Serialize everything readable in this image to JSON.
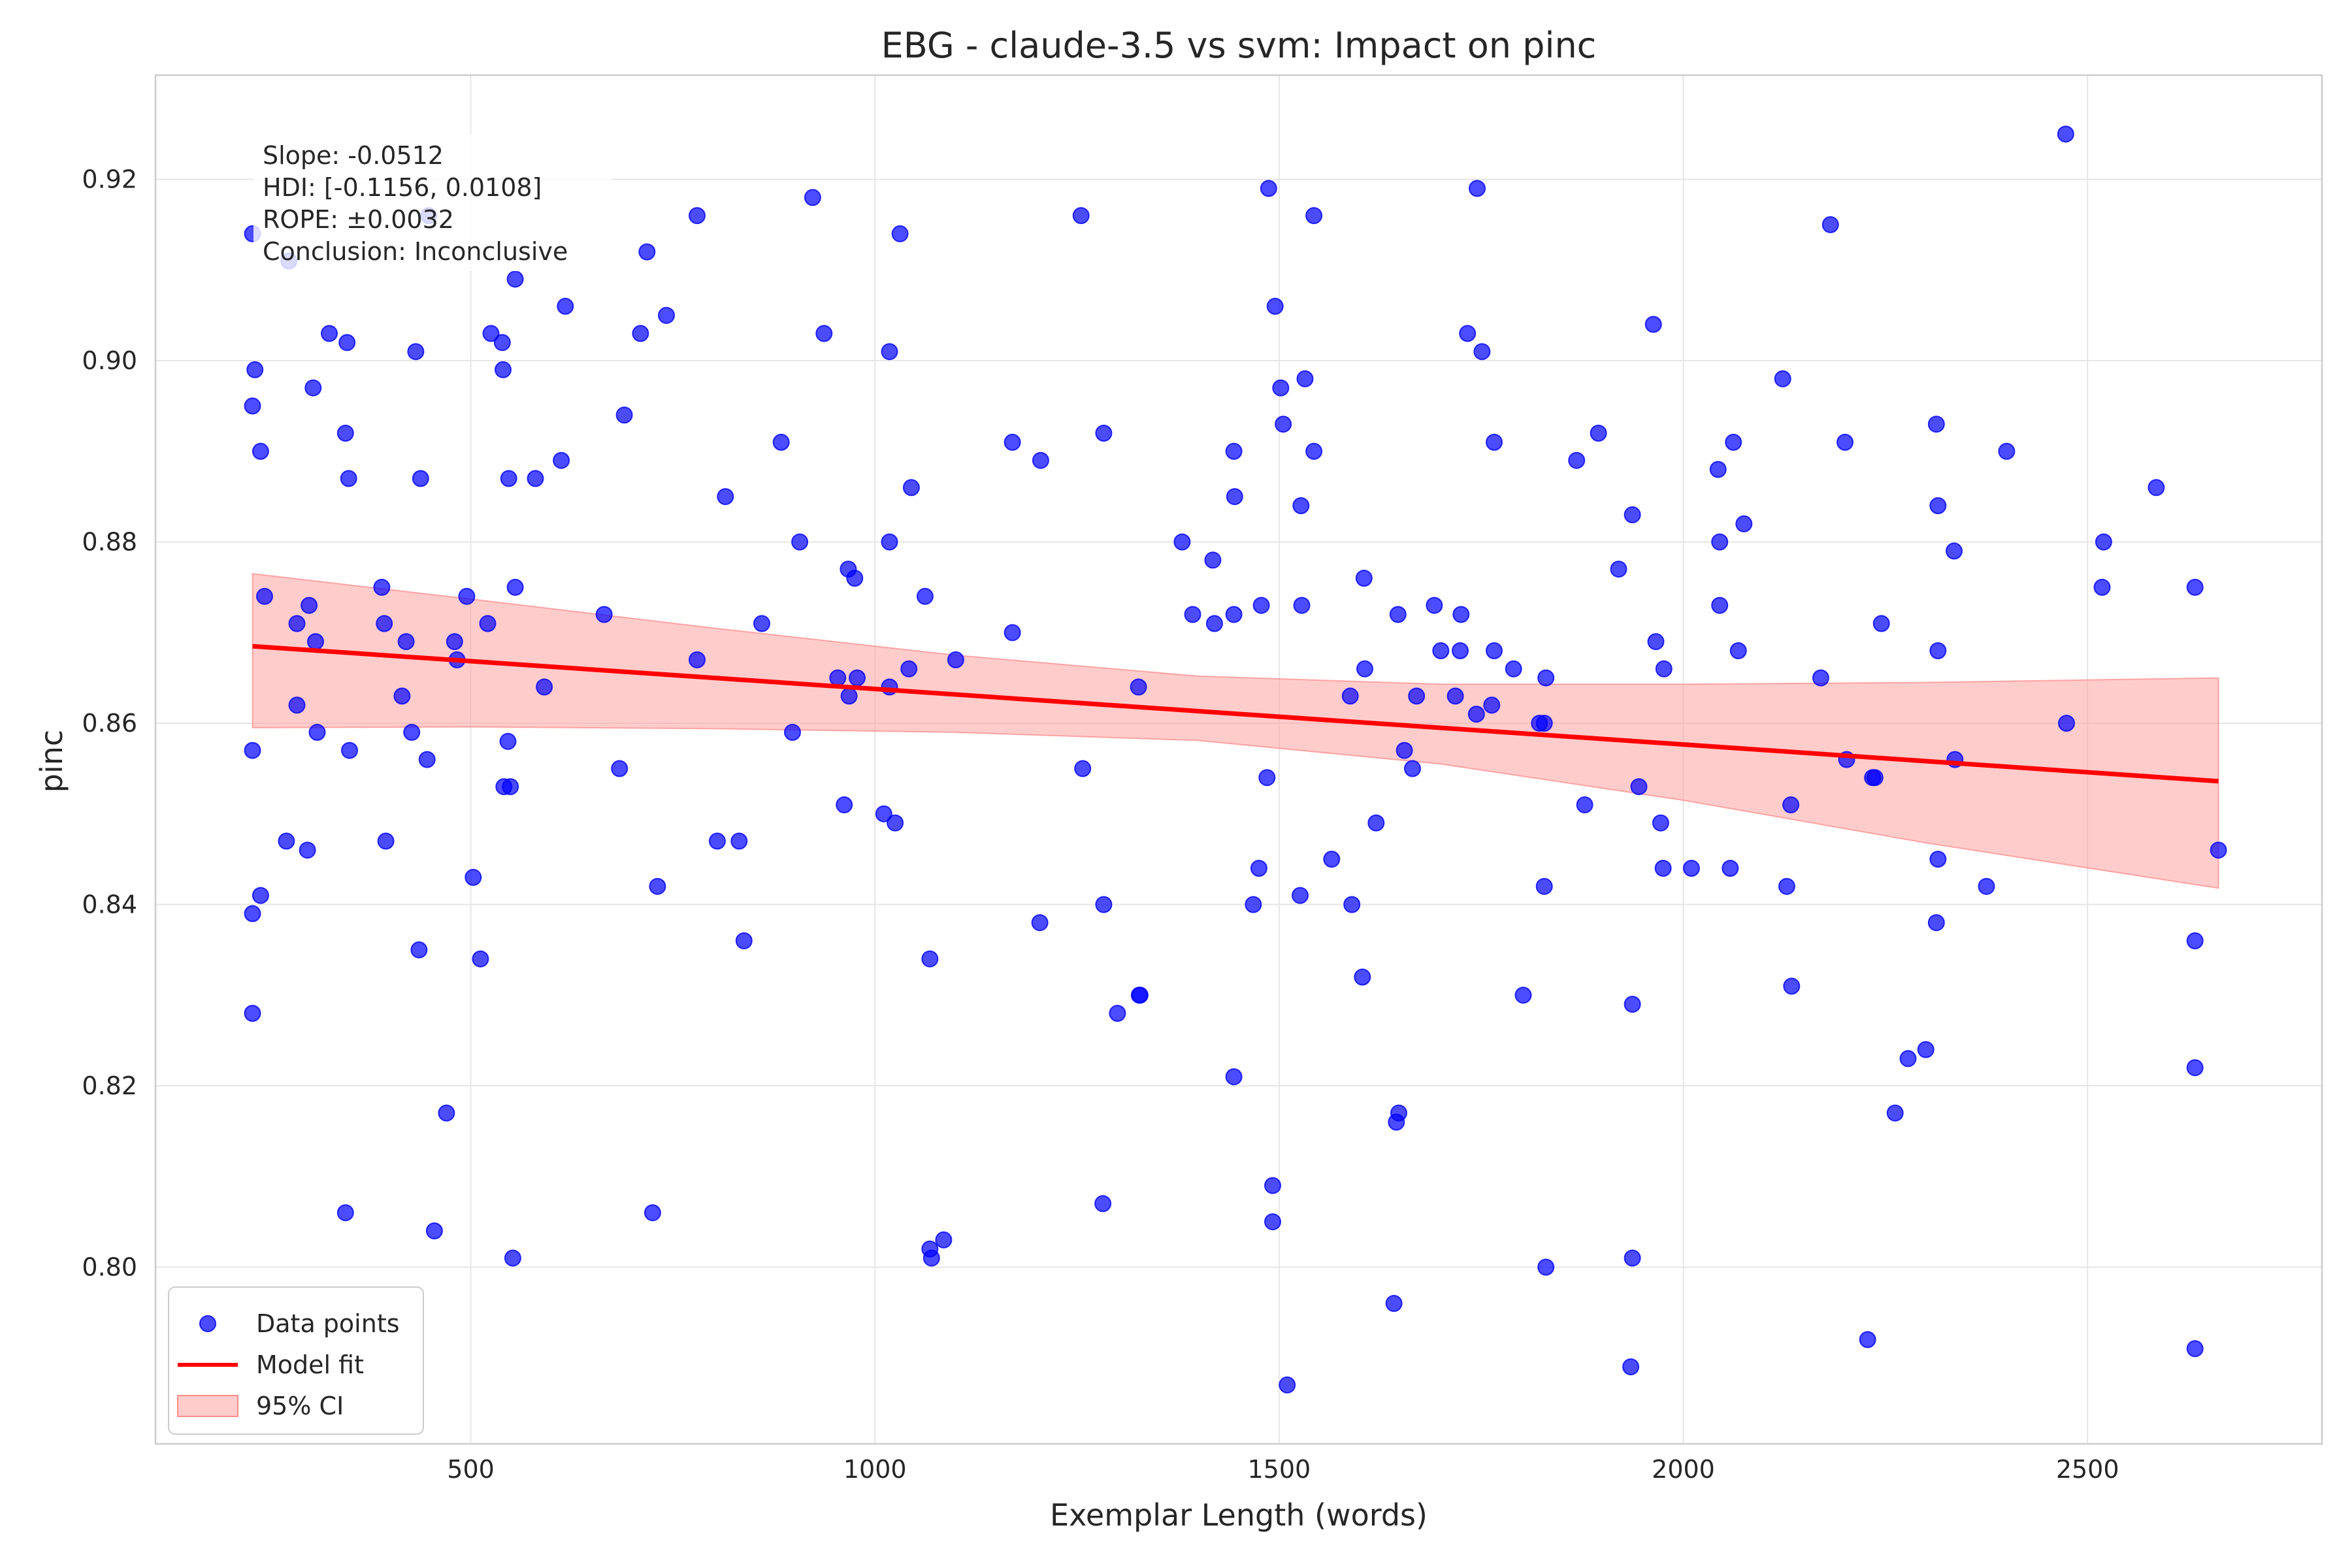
{
  "chart_data": {
    "type": "scatter",
    "title": "EBG - claude-3.5 vs svm: Impact on pinc",
    "xlabel": "Exemplar Length (words)",
    "ylabel": "pinc",
    "xlim": [
      110,
      2790
    ],
    "ylim": [
      0.7805,
      0.9315
    ],
    "xticks": [
      500,
      1000,
      1500,
      2000,
      2500
    ],
    "xtick_labels": [
      "500",
      "1000",
      "1500",
      "2000",
      "2500"
    ],
    "yticks": [
      0.8,
      0.82,
      0.84,
      0.86,
      0.88,
      0.9,
      0.92
    ],
    "ytick_labels": [
      "0.80",
      "0.82",
      "0.84",
      "0.86",
      "0.88",
      "0.90",
      "0.92"
    ],
    "grid": true,
    "legend_position": "lower-left",
    "legend": [
      "Data points",
      "Model fit",
      "95% CI"
    ],
    "colors": {
      "points": "#0000ff",
      "fit": "#ff0000",
      "ci": "#ff9999"
    },
    "annotation": {
      "lines": [
        "Slope: -0.0512",
        "HDI: [-0.1156, 0.0108]",
        "ROPE: ±0.0032",
        "Conclusion: Inconclusive"
      ]
    },
    "series": [
      {
        "name": "Data points",
        "points": [
          [
            230,
            0.914
          ],
          [
            275,
            0.911
          ],
          [
            448,
            0.916
          ],
          [
            555,
            0.909
          ],
          [
            780,
            0.916
          ],
          [
            923,
            0.918
          ],
          [
            1031,
            0.914
          ],
          [
            1255,
            0.916
          ],
          [
            1487,
            0.919
          ],
          [
            1745,
            0.919
          ],
          [
            1543,
            0.916
          ],
          [
            2182,
            0.915
          ],
          [
            2473,
            0.925
          ],
          [
            325,
            0.903
          ],
          [
            347,
            0.902
          ],
          [
            432,
            0.901
          ],
          [
            525,
            0.903
          ],
          [
            539,
            0.902
          ],
          [
            617,
            0.906
          ],
          [
            710,
            0.903
          ],
          [
            718,
            0.912
          ],
          [
            742,
            0.905
          ],
          [
            937,
            0.903
          ],
          [
            1018,
            0.901
          ],
          [
            1495,
            0.906
          ],
          [
            1733,
            0.903
          ],
          [
            1751,
            0.901
          ],
          [
            1963,
            0.904
          ],
          [
            233,
            0.899
          ],
          [
            230,
            0.895
          ],
          [
            240,
            0.89
          ],
          [
            305,
            0.897
          ],
          [
            345,
            0.892
          ],
          [
            349,
            0.887
          ],
          [
            438,
            0.887
          ],
          [
            540,
            0.899
          ],
          [
            547,
            0.887
          ],
          [
            580,
            0.887
          ],
          [
            612,
            0.889
          ],
          [
            690,
            0.894
          ],
          [
            815,
            0.885
          ],
          [
            884,
            0.891
          ],
          [
            1045,
            0.886
          ],
          [
            1170,
            0.891
          ],
          [
            1205,
            0.889
          ],
          [
            1283,
            0.892
          ],
          [
            1444,
            0.89
          ],
          [
            1445,
            0.885
          ],
          [
            1502,
            0.897
          ],
          [
            1505,
            0.893
          ],
          [
            1527,
            0.884
          ],
          [
            1532,
            0.898
          ],
          [
            1543,
            0.89
          ],
          [
            1766,
            0.891
          ],
          [
            1868,
            0.889
          ],
          [
            1895,
            0.892
          ],
          [
            1937,
            0.883
          ],
          [
            2043,
            0.888
          ],
          [
            2062,
            0.891
          ],
          [
            2123,
            0.898
          ],
          [
            2200,
            0.891
          ],
          [
            2313,
            0.893
          ],
          [
            2315,
            0.884
          ],
          [
            2400,
            0.89
          ],
          [
            2585,
            0.886
          ],
          [
            245,
            0.874
          ],
          [
            285,
            0.871
          ],
          [
            300,
            0.873
          ],
          [
            308,
            0.869
          ],
          [
            390,
            0.875
          ],
          [
            393,
            0.871
          ],
          [
            420,
            0.869
          ],
          [
            480,
            0.869
          ],
          [
            495,
            0.874
          ],
          [
            521,
            0.871
          ],
          [
            555,
            0.875
          ],
          [
            665,
            0.872
          ],
          [
            780,
            0.867
          ],
          [
            860,
            0.871
          ],
          [
            907,
            0.88
          ],
          [
            967,
            0.877
          ],
          [
            975,
            0.876
          ],
          [
            1018,
            0.88
          ],
          [
            1062,
            0.874
          ],
          [
            1100,
            0.867
          ],
          [
            1170,
            0.87
          ],
          [
            1380,
            0.88
          ],
          [
            1393,
            0.872
          ],
          [
            1418,
            0.878
          ],
          [
            1420,
            0.871
          ],
          [
            1444,
            0.872
          ],
          [
            1478,
            0.873
          ],
          [
            1528,
            0.873
          ],
          [
            1605,
            0.876
          ],
          [
            1647,
            0.872
          ],
          [
            1692,
            0.873
          ],
          [
            1700,
            0.868
          ],
          [
            1724,
            0.868
          ],
          [
            1725,
            0.872
          ],
          [
            1766,
            0.868
          ],
          [
            1920,
            0.877
          ],
          [
            1966,
            0.869
          ],
          [
            2045,
            0.88
          ],
          [
            2045,
            0.873
          ],
          [
            2068,
            0.868
          ],
          [
            2075,
            0.882
          ],
          [
            2245,
            0.871
          ],
          [
            2315,
            0.868
          ],
          [
            2335,
            0.879
          ],
          [
            2520,
            0.88
          ],
          [
            2518,
            0.875
          ],
          [
            2633,
            0.875
          ],
          [
            230,
            0.857
          ],
          [
            285,
            0.862
          ],
          [
            310,
            0.859
          ],
          [
            350,
            0.857
          ],
          [
            415,
            0.863
          ],
          [
            427,
            0.859
          ],
          [
            446,
            0.856
          ],
          [
            483,
            0.867
          ],
          [
            541,
            0.853
          ],
          [
            546,
            0.858
          ],
          [
            549,
            0.853
          ],
          [
            591,
            0.864
          ],
          [
            684,
            0.855
          ],
          [
            898,
            0.859
          ],
          [
            954,
            0.865
          ],
          [
            968,
            0.863
          ],
          [
            978,
            0.865
          ],
          [
            1018,
            0.864
          ],
          [
            1042,
            0.866
          ],
          [
            1257,
            0.855
          ],
          [
            1326,
            0.864
          ],
          [
            1485,
            0.854
          ],
          [
            1588,
            0.863
          ],
          [
            1606,
            0.866
          ],
          [
            1655,
            0.857
          ],
          [
            1665,
            0.855
          ],
          [
            1670,
            0.863
          ],
          [
            1718,
            0.863
          ],
          [
            1744,
            0.861
          ],
          [
            1763,
            0.862
          ],
          [
            1790,
            0.866
          ],
          [
            1822,
            0.86
          ],
          [
            1828,
            0.86
          ],
          [
            1830,
            0.865
          ],
          [
            1945,
            0.853
          ],
          [
            1976,
            0.866
          ],
          [
            2133,
            0.851
          ],
          [
            2170,
            0.865
          ],
          [
            2202,
            0.856
          ],
          [
            2234,
            0.854
          ],
          [
            2237,
            0.854
          ],
          [
            2336,
            0.856
          ],
          [
            2474,
            0.86
          ],
          [
            230,
            0.839
          ],
          [
            240,
            0.841
          ],
          [
            272,
            0.847
          ],
          [
            298,
            0.846
          ],
          [
            395,
            0.847
          ],
          [
            436,
            0.835
          ],
          [
            503,
            0.843
          ],
          [
            512,
            0.834
          ],
          [
            731,
            0.842
          ],
          [
            805,
            0.847
          ],
          [
            832,
            0.847
          ],
          [
            838,
            0.836
          ],
          [
            962,
            0.851
          ],
          [
            1011,
            0.85
          ],
          [
            1025,
            0.849
          ],
          [
            1068,
            0.834
          ],
          [
            1204,
            0.838
          ],
          [
            1283,
            0.84
          ],
          [
            1468,
            0.84
          ],
          [
            1475,
            0.844
          ],
          [
            1526,
            0.841
          ],
          [
            1565,
            0.845
          ],
          [
            1590,
            0.84
          ],
          [
            1620,
            0.849
          ],
          [
            1828,
            0.842
          ],
          [
            1878,
            0.851
          ],
          [
            1972,
            0.849
          ],
          [
            1975,
            0.844
          ],
          [
            2010,
            0.844
          ],
          [
            2058,
            0.844
          ],
          [
            2128,
            0.842
          ],
          [
            2315,
            0.845
          ],
          [
            2313,
            0.838
          ],
          [
            2375,
            0.842
          ],
          [
            2633,
            0.836
          ],
          [
            2662,
            0.846
          ],
          [
            230,
            0.828
          ],
          [
            1300,
            0.828
          ],
          [
            1327,
            0.83
          ],
          [
            1328,
            0.83
          ],
          [
            1444,
            0.821
          ],
          [
            1603,
            0.832
          ],
          [
            1645,
            0.816
          ],
          [
            1648,
            0.817
          ],
          [
            1802,
            0.83
          ],
          [
            1937,
            0.829
          ],
          [
            2134,
            0.831
          ],
          [
            2262,
            0.817
          ],
          [
            2278,
            0.823
          ],
          [
            2300,
            0.824
          ],
          [
            2633,
            0.822
          ],
          [
            345,
            0.806
          ],
          [
            470,
            0.817
          ],
          [
            455,
            0.804
          ],
          [
            552,
            0.801
          ],
          [
            725,
            0.806
          ],
          [
            1068,
            0.802
          ],
          [
            1070,
            0.801
          ],
          [
            1085,
            0.803
          ],
          [
            1282,
            0.807
          ],
          [
            1492,
            0.809
          ],
          [
            1492,
            0.805
          ],
          [
            1937,
            0.801
          ],
          [
            1830,
            0.8
          ],
          [
            1642,
            0.796
          ],
          [
            1510,
            0.787
          ],
          [
            1935,
            0.789
          ],
          [
            2228,
            0.792
          ],
          [
            2633,
            0.791
          ]
        ]
      },
      {
        "name": "Model fit",
        "x": [
          230,
          2662
        ],
        "y": [
          0.8685,
          0.8536
        ]
      },
      {
        "name": "95% CI",
        "x": [
          230,
          500,
          800,
          1100,
          1400,
          1700,
          2000,
          2300,
          2662
        ],
        "lower": [
          0.8595,
          0.8596,
          0.8594,
          0.859,
          0.8581,
          0.8555,
          0.8515,
          0.8468,
          0.8418
        ],
        "upper": [
          0.8765,
          0.8737,
          0.8705,
          0.8675,
          0.8652,
          0.8643,
          0.8643,
          0.8645,
          0.865
        ]
      }
    ]
  }
}
